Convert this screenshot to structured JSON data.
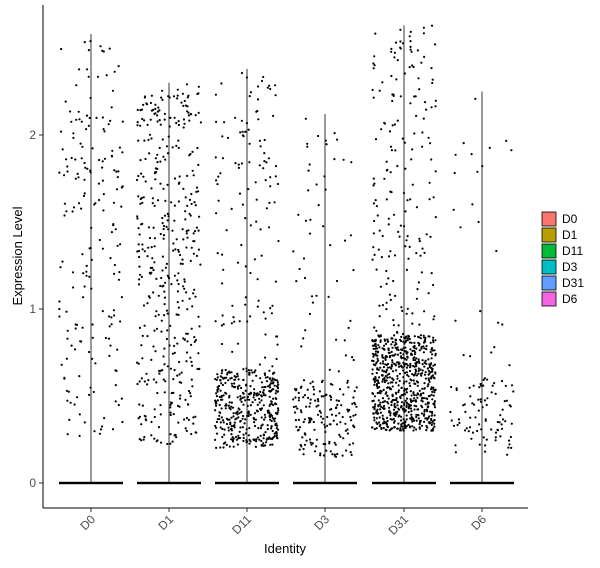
{
  "chart_data": {
    "type": "scatter",
    "subtype": "violin-jitter",
    "xlabel": "Identity",
    "ylabel": "Expression Level",
    "categories": [
      "D0",
      "D1",
      "D11",
      "D3",
      "D31",
      "D6"
    ],
    "ylim": [
      -0.14,
      2.66
    ],
    "yticks": [
      0,
      1,
      2
    ],
    "grid": false,
    "legend_position": "right",
    "series": [
      {
        "name": "D0",
        "color": "#F8766D",
        "max": 2.58,
        "nonzero": {
          "n": 190,
          "min": 0.25,
          "max": 2.55,
          "density": "uniform"
        }
      },
      {
        "name": "D1",
        "color": "#B79F00",
        "max": 2.3,
        "nonzero": {
          "n": 420,
          "min": 0.22,
          "max": 2.3,
          "density": "uniform"
        }
      },
      {
        "name": "D11",
        "color": "#00BA38",
        "max": 2.38,
        "nonzero": {
          "n": 520,
          "min": 0.2,
          "max": 2.38,
          "density": "low"
        }
      },
      {
        "name": "D3",
        "color": "#00BFC4",
        "max": 2.12,
        "nonzero": {
          "n": 210,
          "min": 0.15,
          "max": 2.1,
          "density": "low"
        }
      },
      {
        "name": "D31",
        "color": "#619CFF",
        "max": 2.63,
        "nonzero": {
          "n": 900,
          "min": 0.3,
          "max": 2.63,
          "density": "mid"
        }
      },
      {
        "name": "D6",
        "color": "#F564E3",
        "max": 2.25,
        "nonzero": {
          "n": 110,
          "min": 0.15,
          "max": 2.25,
          "density": "low"
        }
      }
    ]
  }
}
